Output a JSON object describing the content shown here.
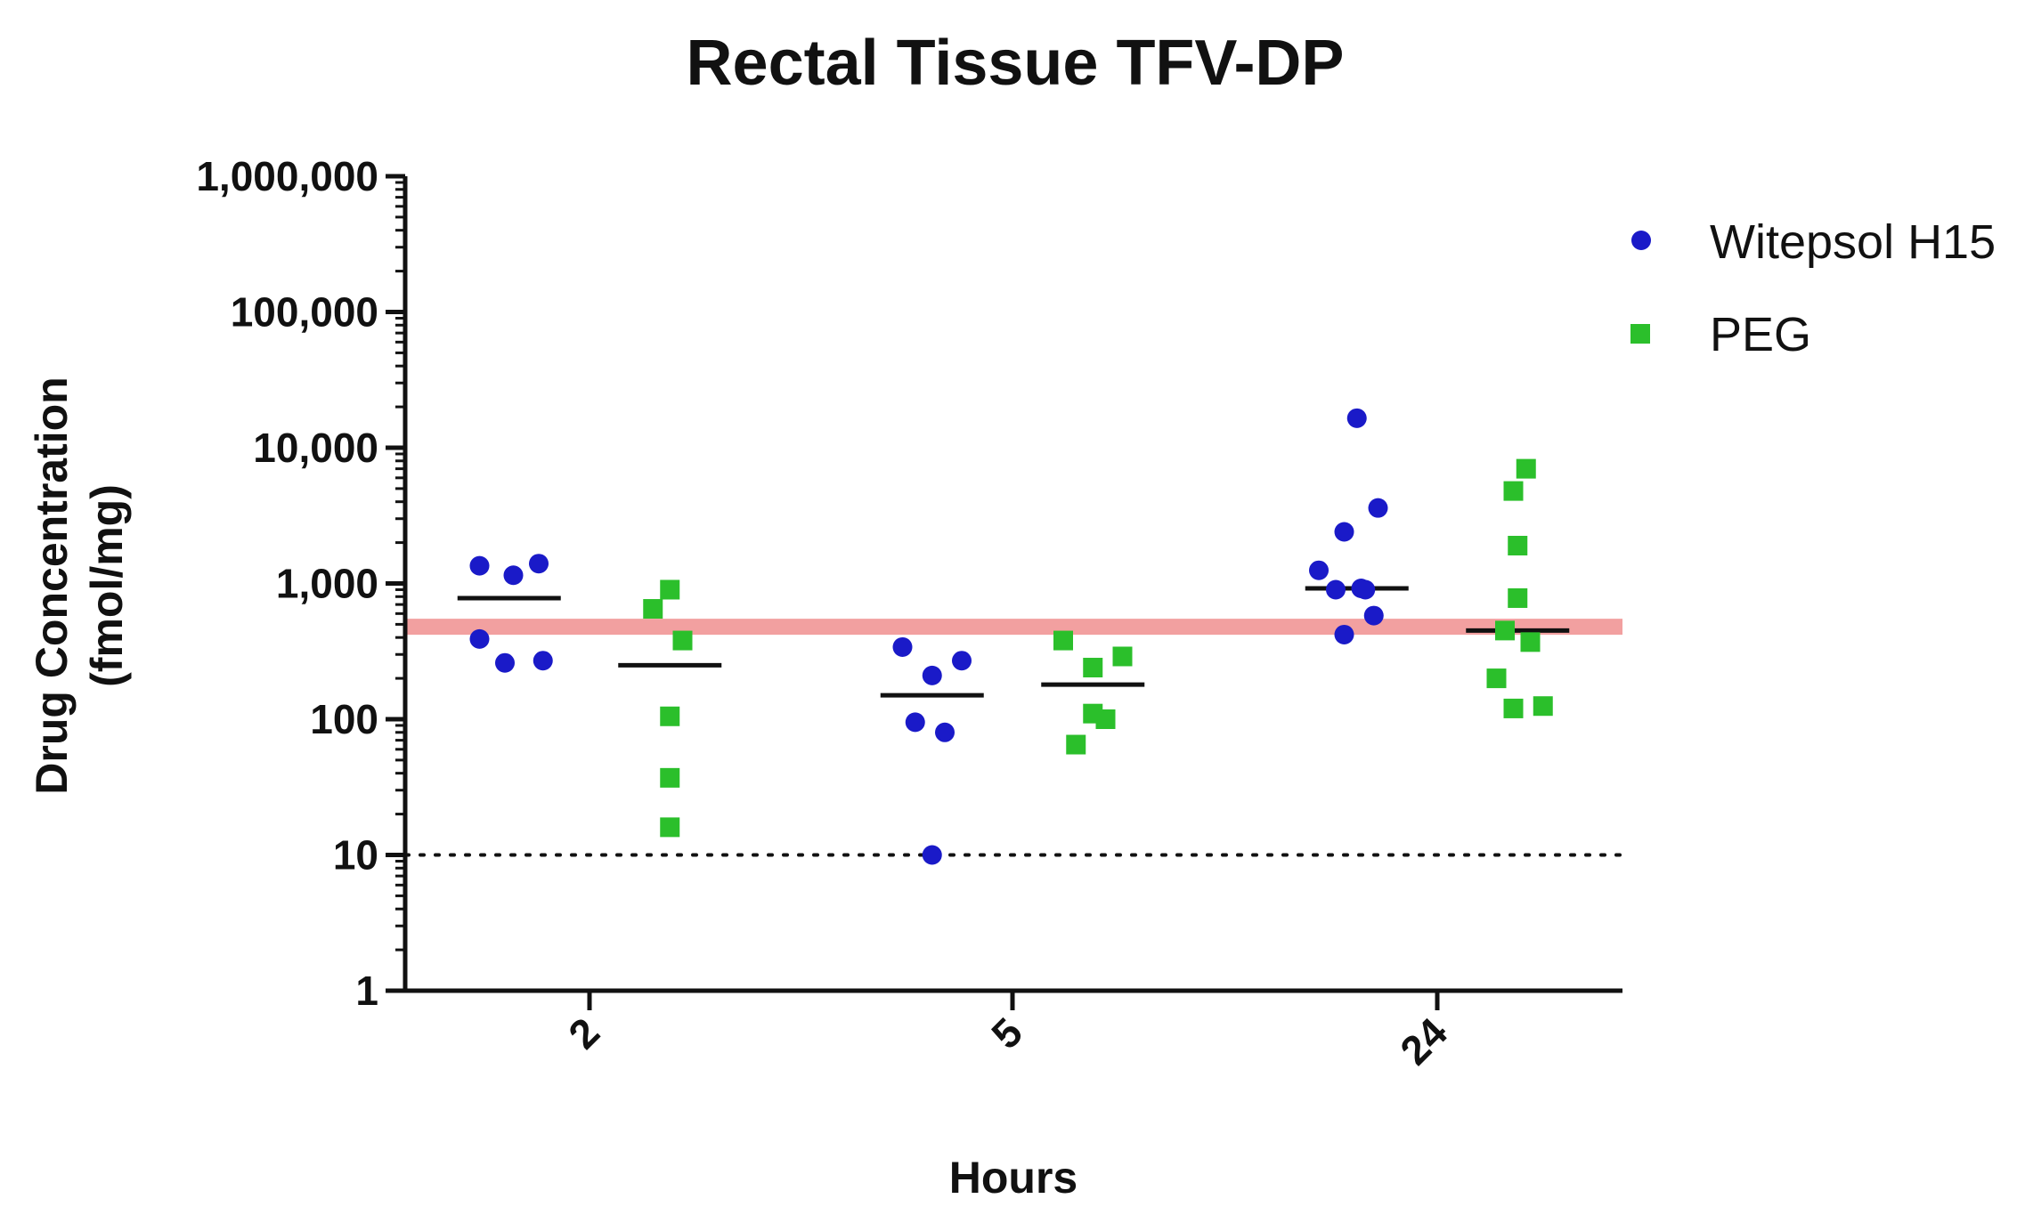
{
  "chart_data": {
    "type": "scatter",
    "title": "Rectal Tissue TFV-DP",
    "xlabel": "Hours",
    "ylabel": [
      "Drug Concentration",
      "(fmol/mg)"
    ],
    "yscale": "log",
    "ylim": [
      1,
      1000000
    ],
    "yticks": [
      {
        "value": 1,
        "label": "1"
      },
      {
        "value": 10,
        "label": "10"
      },
      {
        "value": 100,
        "label": "100"
      },
      {
        "value": 1000,
        "label": "1,000"
      },
      {
        "value": 10000,
        "label": "10,000"
      },
      {
        "value": 100000,
        "label": "100,000"
      },
      {
        "value": 1000000,
        "label": "1,000,000"
      }
    ],
    "categories": [
      "2",
      "5",
      "24"
    ],
    "legend_position": "top-right",
    "reference_lines": [
      {
        "name": "threshold-band",
        "value": 480,
        "color": "#f2a0a0",
        "style": "band"
      },
      {
        "name": "detection-limit",
        "value": 10,
        "color": "#111111",
        "style": "dotted"
      }
    ],
    "series": [
      {
        "name": "Witepsol H15",
        "marker": "circle",
        "color": "#1a1ac8",
        "groups": [
          {
            "category": "2",
            "points": [
              {
                "offset": -0.26,
                "value": 1350
              },
              {
                "offset": -0.18,
                "value": 1150
              },
              {
                "offset": -0.12,
                "value": 1400
              },
              {
                "offset": -0.26,
                "value": 390
              },
              {
                "offset": -0.2,
                "value": 260
              },
              {
                "offset": -0.11,
                "value": 270
              }
            ],
            "median": 780
          },
          {
            "category": "5",
            "points": [
              {
                "offset": -0.26,
                "value": 340
              },
              {
                "offset": -0.19,
                "value": 210
              },
              {
                "offset": -0.12,
                "value": 270
              },
              {
                "offset": -0.23,
                "value": 95
              },
              {
                "offset": -0.16,
                "value": 80
              },
              {
                "offset": -0.19,
                "value": 10
              }
            ],
            "median": 150
          },
          {
            "category": "24",
            "points": [
              {
                "offset": -0.19,
                "value": 16500
              },
              {
                "offset": -0.14,
                "value": 3600
              },
              {
                "offset": -0.22,
                "value": 2400
              },
              {
                "offset": -0.28,
                "value": 1250
              },
              {
                "offset": -0.24,
                "value": 900
              },
              {
                "offset": -0.18,
                "value": 920
              },
              {
                "offset": -0.17,
                "value": 900
              },
              {
                "offset": -0.15,
                "value": 580
              },
              {
                "offset": -0.22,
                "value": 420
              }
            ],
            "median": 920
          }
        ]
      },
      {
        "name": "PEG",
        "marker": "square",
        "color": "#2bbf2b",
        "groups": [
          {
            "category": "2",
            "points": [
              {
                "offset": 0.19,
                "value": 900
              },
              {
                "offset": 0.15,
                "value": 650
              },
              {
                "offset": 0.22,
                "value": 380
              },
              {
                "offset": 0.19,
                "value": 105
              },
              {
                "offset": 0.19,
                "value": 37
              },
              {
                "offset": 0.19,
                "value": 16
              }
            ],
            "median": 250
          },
          {
            "category": "5",
            "points": [
              {
                "offset": 0.12,
                "value": 380
              },
              {
                "offset": 0.26,
                "value": 290
              },
              {
                "offset": 0.19,
                "value": 240
              },
              {
                "offset": 0.19,
                "value": 110
              },
              {
                "offset": 0.22,
                "value": 100
              },
              {
                "offset": 0.15,
                "value": 65
              }
            ],
            "median": 180
          },
          {
            "category": "24",
            "points": [
              {
                "offset": 0.21,
                "value": 7000
              },
              {
                "offset": 0.18,
                "value": 4800
              },
              {
                "offset": 0.19,
                "value": 1900
              },
              {
                "offset": 0.19,
                "value": 780
              },
              {
                "offset": 0.16,
                "value": 450
              },
              {
                "offset": 0.22,
                "value": 370
              },
              {
                "offset": 0.14,
                "value": 200
              },
              {
                "offset": 0.18,
                "value": 120
              },
              {
                "offset": 0.25,
                "value": 125
              }
            ],
            "median": 450
          }
        ]
      }
    ]
  }
}
